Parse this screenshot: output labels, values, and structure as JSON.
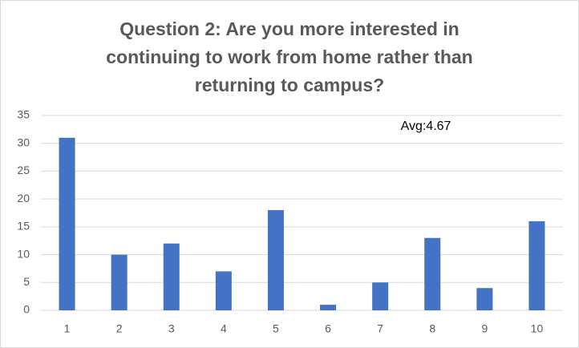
{
  "chart_data": {
    "type": "bar",
    "title": "Question 2: Are you more interested in continuing to work from home rather than returning to campus?",
    "annotation": "Avg:4.67",
    "categories": [
      "1",
      "2",
      "3",
      "4",
      "5",
      "6",
      "7",
      "8",
      "9",
      "10"
    ],
    "values": [
      31,
      10,
      12,
      7,
      18,
      1,
      5,
      13,
      4,
      16
    ],
    "color": "#4472c4",
    "ylim": [
      0,
      35
    ],
    "yticks": [
      0,
      5,
      10,
      15,
      20,
      25,
      30,
      35
    ],
    "grid": true
  }
}
